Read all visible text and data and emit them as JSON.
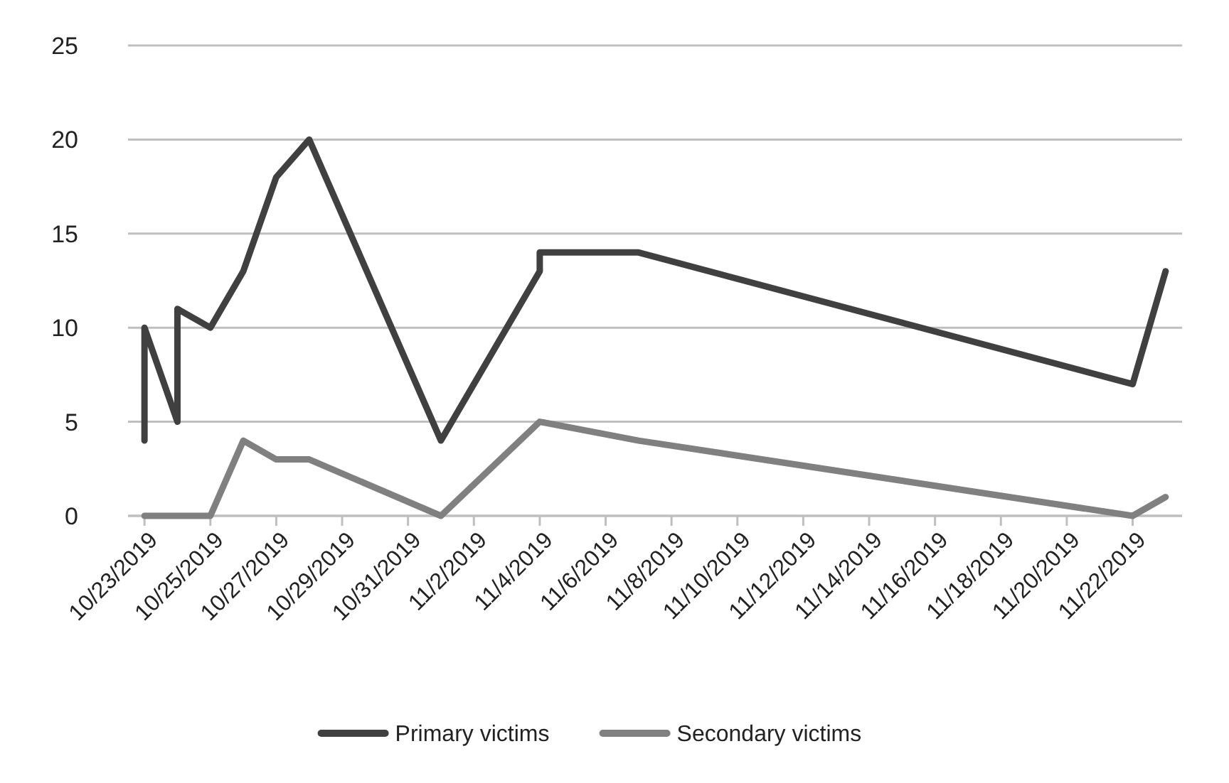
{
  "chart_data": {
    "type": "line",
    "xlim": [
      "2019-10-22T12:00",
      "2019-11-23T12:00"
    ],
    "xticks": [
      {
        "value": "2019-10-23",
        "label": "10/23/2019"
      },
      {
        "value": "2019-10-25",
        "label": "10/25/2019"
      },
      {
        "value": "2019-10-27",
        "label": "10/27/2019"
      },
      {
        "value": "2019-10-29",
        "label": "10/29/2019"
      },
      {
        "value": "2019-10-31",
        "label": "10/31/2019"
      },
      {
        "value": "2019-11-02",
        "label": "11/2/2019"
      },
      {
        "value": "2019-11-04",
        "label": "11/4/2019"
      },
      {
        "value": "2019-11-06",
        "label": "11/6/2019"
      },
      {
        "value": "2019-11-08",
        "label": "11/8/2019"
      },
      {
        "value": "2019-11-10",
        "label": "11/10/2019"
      },
      {
        "value": "2019-11-12",
        "label": "11/12/2019"
      },
      {
        "value": "2019-11-14",
        "label": "11/14/2019"
      },
      {
        "value": "2019-11-16",
        "label": "11/16/2019"
      },
      {
        "value": "2019-11-18",
        "label": "11/18/2019"
      },
      {
        "value": "2019-11-20",
        "label": "11/20/2019"
      },
      {
        "value": "2019-11-22",
        "label": "11/22/2019"
      }
    ],
    "ylim": [
      0,
      25
    ],
    "yticks": [
      0,
      5,
      10,
      15,
      20,
      25
    ],
    "grid": "y",
    "legend": "bottom",
    "marker": "none",
    "line_style": "solid",
    "series": [
      {
        "name": "Primary victims",
        "color": "#404040",
        "x": [
          "2019-10-23",
          "2019-10-23",
          "2019-10-24",
          "2019-10-24",
          "2019-10-25",
          "2019-10-26",
          "2019-10-27",
          "2019-10-28",
          "2019-11-01",
          "2019-11-04",
          "2019-11-04",
          "2019-11-07",
          "2019-11-22",
          "2019-11-23"
        ],
        "values": [
          4,
          10,
          5,
          11,
          10,
          13,
          18,
          20,
          4,
          13,
          14,
          14,
          7,
          13
        ]
      },
      {
        "name": "Secondary victims",
        "color": "#808080",
        "x": [
          "2019-10-23",
          "2019-10-24",
          "2019-10-25",
          "2019-10-26",
          "2019-10-27",
          "2019-10-28",
          "2019-11-01",
          "2019-11-04",
          "2019-11-07",
          "2019-11-22",
          "2019-11-23"
        ],
        "values": [
          0,
          0,
          0,
          4,
          3,
          3,
          0,
          5,
          4,
          0,
          1
        ]
      }
    ]
  }
}
